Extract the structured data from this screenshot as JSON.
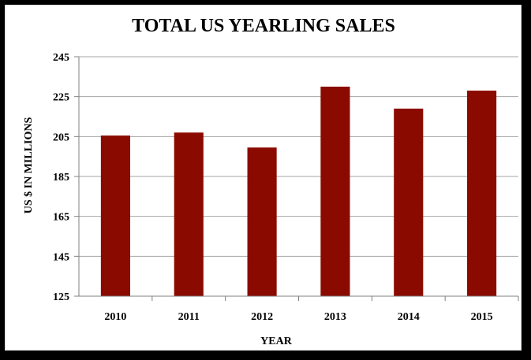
{
  "chart_data": {
    "type": "bar",
    "title": "TOTAL US YEARLING SALES",
    "xlabel": "YEAR",
    "ylabel": "US $ IN MILLIONS",
    "categories": [
      "2010",
      "2011",
      "2012",
      "2013",
      "2014",
      "2015"
    ],
    "values": [
      205.5,
      207,
      199.5,
      230,
      219,
      228
    ],
    "ylim": [
      125,
      245
    ],
    "yticks": [
      125,
      145,
      165,
      185,
      205,
      225,
      245
    ],
    "grid": true,
    "legend": "none",
    "bar_color": "#8b0a00"
  }
}
